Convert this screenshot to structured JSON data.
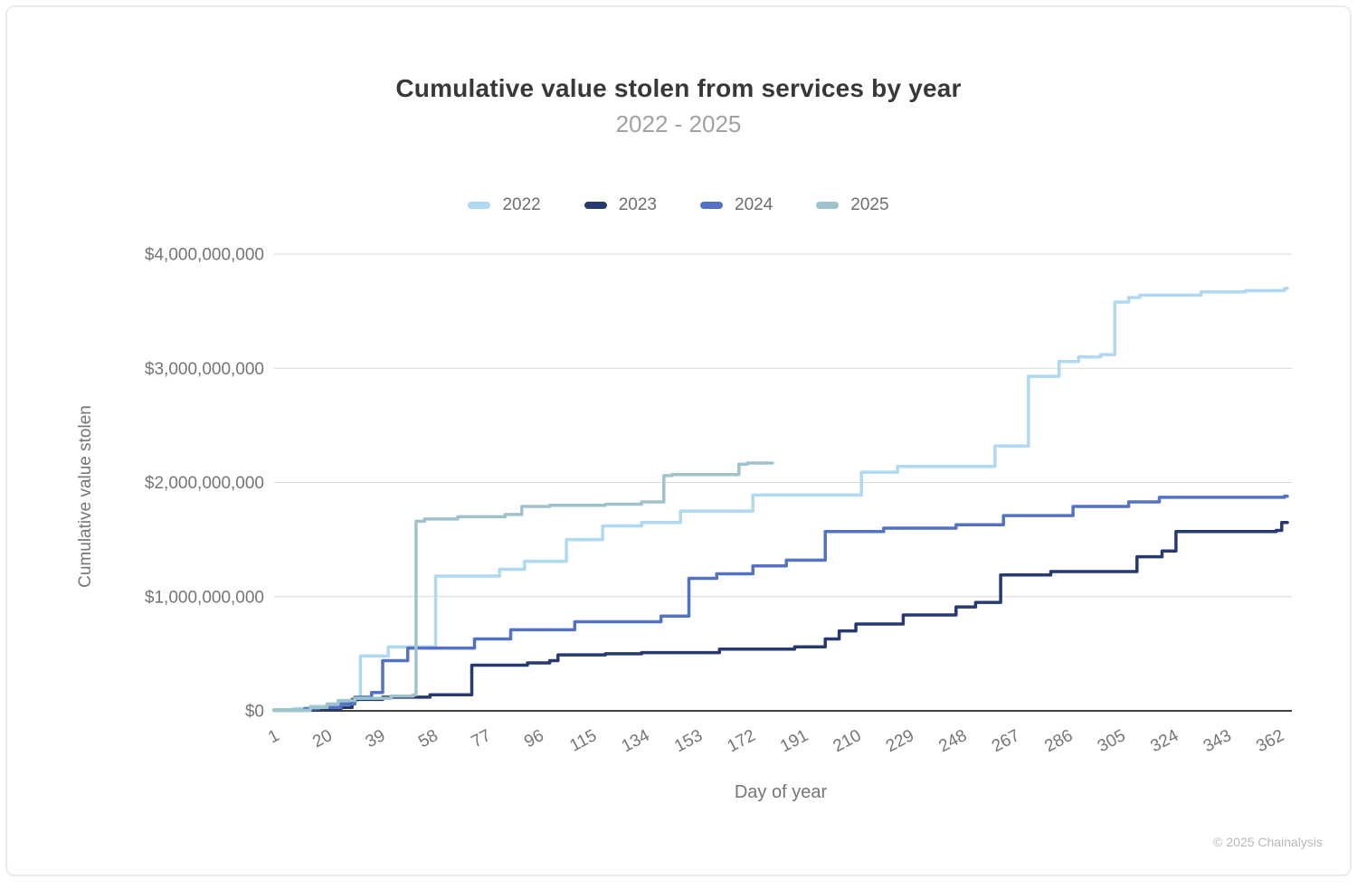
{
  "header": {
    "title": "Cumulative value stolen from services by year",
    "subtitle": "2022 - 2025"
  },
  "footer": {
    "credit": "© 2025 Chainalysis"
  },
  "chart_data": {
    "type": "line",
    "subtype": "cumulative-step",
    "title": "Cumulative value stolen from services by year",
    "subtitle": "2022 - 2025",
    "xlabel": "Day of year",
    "ylabel": "Cumulative value stolen",
    "unit": "USD",
    "xlim": [
      1,
      365
    ],
    "ylim_usd": [
      0,
      4000000000
    ],
    "grid": "horizontal",
    "legend_position": "top",
    "x_ticks": [
      1,
      20,
      39,
      58,
      77,
      96,
      115,
      134,
      153,
      172,
      191,
      210,
      229,
      248,
      267,
      286,
      305,
      324,
      343,
      362
    ],
    "y_ticks": [
      {
        "value_usd": 0,
        "label": "$0"
      },
      {
        "value_usd": 1000000000,
        "label": "$1,000,000,000"
      },
      {
        "value_usd": 2000000000,
        "label": "$2,000,000,000"
      },
      {
        "value_usd": 3000000000,
        "label": "$3,000,000,000"
      },
      {
        "value_usd": 4000000000,
        "label": "$4,000,000,000"
      }
    ],
    "series": [
      {
        "name": "2022",
        "color": "#AFD8F1",
        "end_day": 365,
        "points_day_usdBillions": [
          [
            1,
            0.01
          ],
          [
            8,
            0.02
          ],
          [
            14,
            0.04
          ],
          [
            20,
            0.055
          ],
          [
            25,
            0.07
          ],
          [
            29,
            0.09
          ],
          [
            31,
            0.1
          ],
          [
            32,
            0.48
          ],
          [
            42,
            0.56
          ],
          [
            59,
            1.18
          ],
          [
            82,
            1.24
          ],
          [
            91,
            1.31
          ],
          [
            106,
            1.5
          ],
          [
            119,
            1.62
          ],
          [
            133,
            1.65
          ],
          [
            147,
            1.75
          ],
          [
            173,
            1.89
          ],
          [
            212,
            2.09
          ],
          [
            225,
            2.14
          ],
          [
            260,
            2.32
          ],
          [
            272,
            2.93
          ],
          [
            283,
            3.06
          ],
          [
            290,
            3.1
          ],
          [
            298,
            3.12
          ],
          [
            303,
            3.58
          ],
          [
            308,
            3.62
          ],
          [
            312,
            3.64
          ],
          [
            334,
            3.67
          ],
          [
            350,
            3.68
          ],
          [
            364,
            3.7
          ]
        ]
      },
      {
        "name": "2023",
        "color": "#263A6F",
        "end_day": 365,
        "points_day_usdBillions": [
          [
            1,
            0.005
          ],
          [
            15,
            0.015
          ],
          [
            25,
            0.03
          ],
          [
            29,
            0.1
          ],
          [
            40,
            0.12
          ],
          [
            57,
            0.14
          ],
          [
            72,
            0.4
          ],
          [
            92,
            0.42
          ],
          [
            100,
            0.44
          ],
          [
            103,
            0.49
          ],
          [
            120,
            0.5
          ],
          [
            133,
            0.51
          ],
          [
            161,
            0.54
          ],
          [
            188,
            0.56
          ],
          [
            199,
            0.63
          ],
          [
            204,
            0.7
          ],
          [
            210,
            0.76
          ],
          [
            227,
            0.84
          ],
          [
            246,
            0.91
          ],
          [
            253,
            0.95
          ],
          [
            262,
            1.19
          ],
          [
            280,
            1.22
          ],
          [
            311,
            1.35
          ],
          [
            320,
            1.4
          ],
          [
            325,
            1.57
          ],
          [
            361,
            1.58
          ],
          [
            363,
            1.65
          ]
        ]
      },
      {
        "name": "2024",
        "color": "#5472C4",
        "end_day": 365,
        "points_day_usdBillions": [
          [
            1,
            0.005
          ],
          [
            12,
            0.02
          ],
          [
            17,
            0.03
          ],
          [
            25,
            0.06
          ],
          [
            30,
            0.12
          ],
          [
            36,
            0.16
          ],
          [
            40,
            0.44
          ],
          [
            49,
            0.55
          ],
          [
            73,
            0.63
          ],
          [
            86,
            0.71
          ],
          [
            109,
            0.78
          ],
          [
            140,
            0.83
          ],
          [
            150,
            1.16
          ],
          [
            160,
            1.2
          ],
          [
            173,
            1.27
          ],
          [
            185,
            1.32
          ],
          [
            199,
            1.57
          ],
          [
            220,
            1.6
          ],
          [
            246,
            1.63
          ],
          [
            263,
            1.71
          ],
          [
            288,
            1.79
          ],
          [
            308,
            1.83
          ],
          [
            319,
            1.87
          ],
          [
            364,
            1.88
          ]
        ]
      },
      {
        "name": "2025",
        "color": "#9FC3CC",
        "end_day": 180,
        "points_day_usdBillions": [
          [
            1,
            0.005
          ],
          [
            14,
            0.03
          ],
          [
            20,
            0.06
          ],
          [
            24,
            0.09
          ],
          [
            30,
            0.11
          ],
          [
            43,
            0.13
          ],
          [
            51,
            0.14
          ],
          [
            52,
            1.66
          ],
          [
            55,
            1.68
          ],
          [
            67,
            1.7
          ],
          [
            84,
            1.72
          ],
          [
            90,
            1.79
          ],
          [
            100,
            1.8
          ],
          [
            120,
            1.81
          ],
          [
            133,
            1.83
          ],
          [
            141,
            2.06
          ],
          [
            144,
            2.07
          ],
          [
            168,
            2.16
          ],
          [
            171,
            2.17
          ]
        ]
      }
    ]
  }
}
